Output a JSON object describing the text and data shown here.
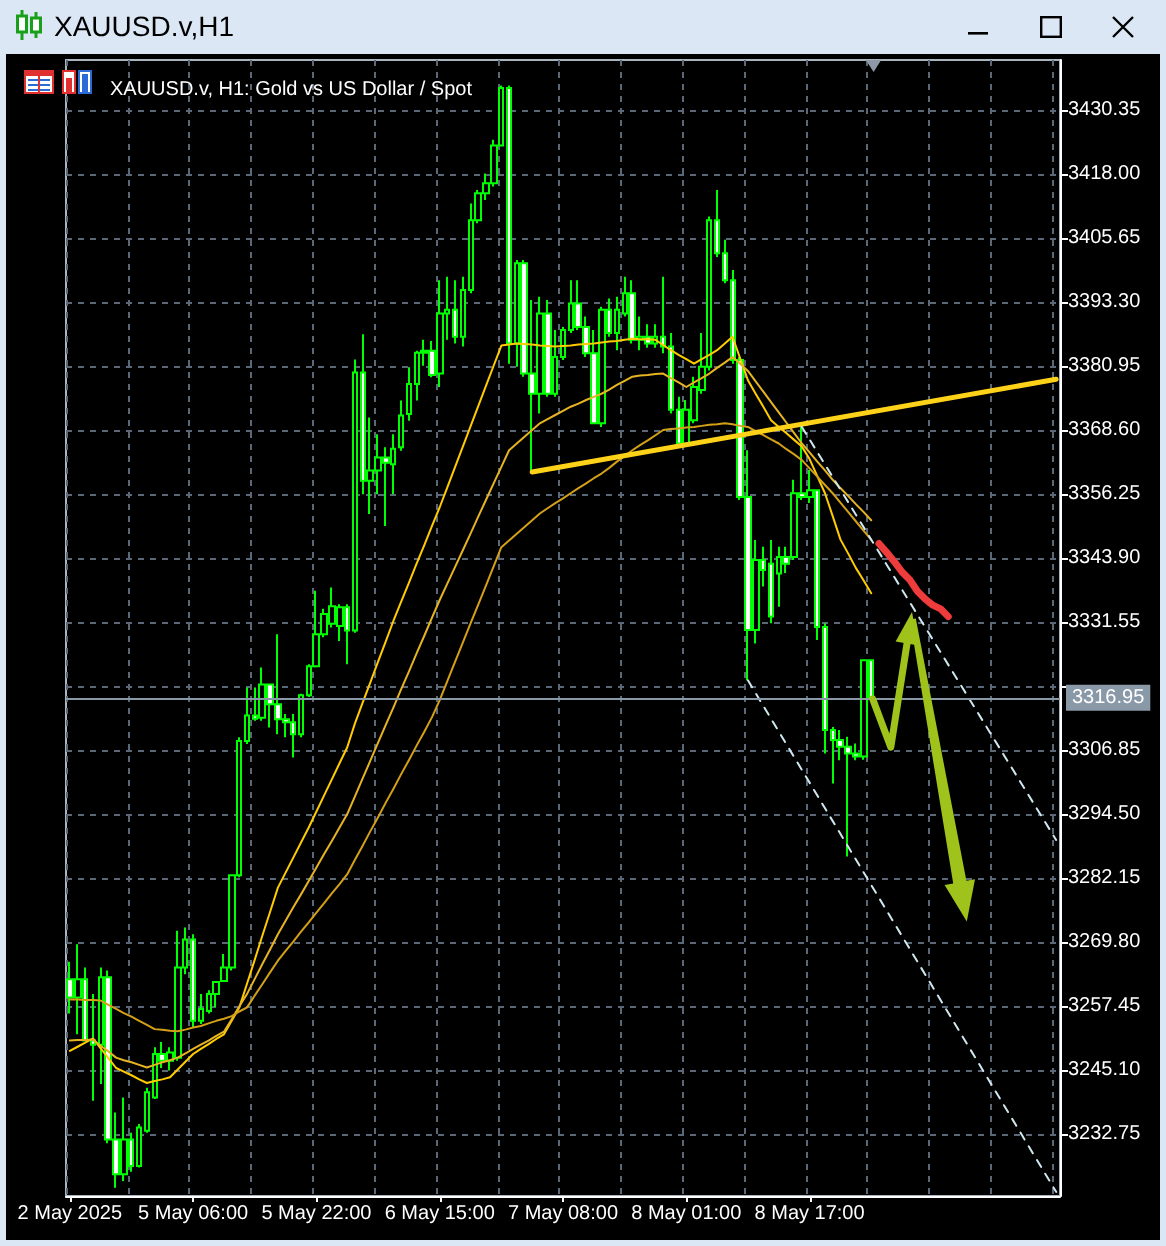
{
  "chart_data": {
    "type": "candlestick",
    "title": "XAUUSD.v,H1",
    "subtitle": "XAUUSD.v, H1: Gold vs US Dollar / Spot",
    "categories": [
      "2 May 2025",
      null,
      null,
      null,
      null,
      null,
      null,
      null,
      null,
      null,
      null,
      null,
      null,
      null,
      null,
      null,
      "5 May 06:00",
      null,
      null,
      null,
      null,
      null,
      null,
      null,
      null,
      null,
      null,
      null,
      null,
      null,
      null,
      null,
      "5 May 22:00",
      null,
      null,
      null,
      null,
      null,
      null,
      null,
      null,
      null,
      null,
      null,
      null,
      null,
      null,
      null,
      "6 May 15:00",
      null,
      null,
      null,
      null,
      null,
      null,
      null,
      null,
      null,
      null,
      null,
      null,
      null,
      null,
      null,
      "7 May 08:00",
      null,
      null,
      null,
      null,
      null,
      null,
      null,
      null,
      null,
      null,
      null,
      null,
      null,
      null,
      null,
      "8 May 01:00",
      null,
      null,
      null,
      null,
      null,
      null,
      null,
      null,
      null,
      null,
      null,
      null,
      null,
      null,
      null,
      "8 May 17:00",
      null,
      null,
      null,
      null,
      null,
      null,
      null,
      null,
      null,
      null,
      null,
      null,
      null,
      null,
      null,
      null,
      null,
      null,
      null,
      null,
      null,
      null,
      null,
      null,
      null,
      null,
      null,
      null,
      null,
      null,
      null,
      null
    ],
    "color": "#00ff00",
    "ohlc": [
      [
        3262.6,
        3266.0,
        3256.0,
        3259.1
      ],
      [
        3259.1,
        3269.4,
        3252.0,
        3262.6
      ],
      [
        3262.6,
        3264.9,
        3250.8,
        3250.8
      ],
      [
        3250.8,
        3259.8,
        3239.2,
        3250.0
      ],
      [
        3250.0,
        3264.9,
        3242.4,
        3263.0
      ],
      [
        3263.0,
        3264.3,
        3231.0,
        3231.7
      ],
      [
        3231.7,
        3236.9,
        3222.4,
        3225.0
      ],
      [
        3225.0,
        3239.8,
        3223.7,
        3231.7
      ],
      [
        3231.7,
        3233.0,
        3225.5,
        3226.6
      ],
      [
        3226.6,
        3234.7,
        3226.3,
        3234.0
      ],
      [
        3233.4,
        3241.7,
        3233.0,
        3240.8
      ],
      [
        3239.8,
        3249.5,
        3239.5,
        3248.2
      ],
      [
        3248.2,
        3250.5,
        3245.5,
        3246.9
      ],
      [
        3246.9,
        3249.5,
        3245.0,
        3248.5
      ],
      [
        3247.5,
        3272.0,
        3246.9,
        3264.9
      ],
      [
        3264.9,
        3272.6,
        3263.6,
        3270.3
      ],
      [
        3270.3,
        3271.3,
        3253.3,
        3254.6
      ],
      [
        3254.6,
        3259.8,
        3254.0,
        3256.9
      ],
      [
        3256.5,
        3260.5,
        3256.0,
        3259.8
      ],
      [
        3259.8,
        3262.3,
        3257.2,
        3262.1
      ],
      [
        3262.3,
        3267.5,
        3262.1,
        3264.9
      ],
      [
        3264.9,
        3282.9,
        3264.3,
        3282.7
      ],
      [
        3282.7,
        3309.3,
        3282.3,
        3308.6
      ],
      [
        3308.6,
        3318.9,
        3308.0,
        3313.5
      ],
      [
        3313.5,
        3318.9,
        3312.5,
        3312.9
      ],
      [
        3313.1,
        3322.8,
        3312.5,
        3319.5
      ],
      [
        3319.5,
        3319.6,
        3311.2,
        3315.7
      ],
      [
        3315.7,
        3329.2,
        3309.9,
        3312.8
      ],
      [
        3312.8,
        3313.8,
        3309.3,
        3312.2
      ],
      [
        3312.2,
        3313.8,
        3305.4,
        3309.9
      ],
      [
        3309.9,
        3317.7,
        3309.3,
        3317.4
      ],
      [
        3317.4,
        3323.4,
        3317.1,
        3323.0
      ],
      [
        3323.0,
        3337.6,
        3322.8,
        3329.2
      ],
      [
        3329.2,
        3334.1,
        3328.6,
        3333.1
      ],
      [
        3331.2,
        3338.2,
        3330.5,
        3334.6
      ],
      [
        3330.8,
        3335.0,
        3327.9,
        3334.4
      ],
      [
        3334.4,
        3335.0,
        3323.4,
        3329.9
      ],
      [
        3329.9,
        3382.2,
        3329.5,
        3379.7
      ],
      [
        3379.7,
        3387.1,
        3356.2,
        3358.8
      ],
      [
        3358.8,
        3371.0,
        3352.4,
        3360.8
      ],
      [
        3360.8,
        3367.8,
        3356.2,
        3363.3
      ],
      [
        3363.3,
        3365.3,
        3350.1,
        3362.3
      ],
      [
        3362.0,
        3367.8,
        3356.2,
        3365.0
      ],
      [
        3365.3,
        3374.3,
        3364.6,
        3371.4
      ],
      [
        3371.7,
        3380.7,
        3370.4,
        3377.5
      ],
      [
        3377.5,
        3383.9,
        3374.3,
        3383.5
      ],
      [
        3383.5,
        3386.0,
        3381.0,
        3383.9
      ],
      [
        3383.9,
        3385.8,
        3378.8,
        3379.2
      ],
      [
        3379.5,
        3397.5,
        3376.9,
        3391.1
      ],
      [
        3391.1,
        3398.2,
        3386.0,
        3391.8
      ],
      [
        3391.8,
        3397.5,
        3385.3,
        3386.6
      ],
      [
        3386.6,
        3398.2,
        3384.7,
        3395.6
      ],
      [
        3395.6,
        3412.3,
        3395.0,
        3409.1
      ],
      [
        3409.1,
        3414.9,
        3408.5,
        3414.3
      ],
      [
        3414.3,
        3418.1,
        3413.0,
        3416.2
      ],
      [
        3416.2,
        3424.6,
        3415.6,
        3423.5
      ],
      [
        3423.5,
        3435.1,
        3423.3,
        3434.6
      ],
      [
        3434.6,
        3435.1,
        3381.4,
        3385.3
      ],
      [
        3385.3,
        3401.4,
        3380.8,
        3400.8
      ],
      [
        3400.8,
        3401.4,
        3378.9,
        3379.5
      ],
      [
        3379.5,
        3393.7,
        3360.5,
        3375.6
      ],
      [
        3375.6,
        3394.3,
        3371.8,
        3391.1
      ],
      [
        3391.1,
        3393.7,
        3375.0,
        3375.6
      ],
      [
        3375.6,
        3387.9,
        3375.0,
        3382.7
      ],
      [
        3382.7,
        3388.5,
        3382.1,
        3387.9
      ],
      [
        3387.9,
        3397.5,
        3387.3,
        3393.0
      ],
      [
        3393.0,
        3397.5,
        3387.9,
        3388.5
      ],
      [
        3388.5,
        3390.5,
        3382.7,
        3383.4
      ],
      [
        3383.4,
        3387.9,
        3369.9,
        3369.9
      ],
      [
        3369.9,
        3392.4,
        3369.2,
        3391.8
      ],
      [
        3391.8,
        3394.0,
        3386.6,
        3387.3
      ],
      [
        3387.3,
        3394.3,
        3384.0,
        3391.8
      ],
      [
        3391.1,
        3398.2,
        3390.5,
        3395.0
      ],
      [
        3395.0,
        3397.5,
        3385.3,
        3386.0
      ],
      [
        3386.0,
        3390.5,
        3384.0,
        3386.6
      ],
      [
        3386.6,
        3389.0,
        3384.5,
        3385.3
      ],
      [
        3385.3,
        3389.0,
        3384.5,
        3386.6
      ],
      [
        3386.6,
        3398.2,
        3383.4,
        3384.7
      ],
      [
        3384.7,
        3387.3,
        3371.8,
        3372.5
      ],
      [
        3372.5,
        3375.0,
        3365.4,
        3366.0
      ],
      [
        3366.0,
        3374.4,
        3365.4,
        3372.5
      ],
      [
        3370.5,
        3378.9,
        3369.9,
        3376.9
      ],
      [
        3376.3,
        3387.3,
        3375.6,
        3380.8
      ],
      [
        3380.8,
        3409.8,
        3380.1,
        3409.1
      ],
      [
        3409.1,
        3414.9,
        3402.0,
        3402.7
      ],
      [
        3402.7,
        3405.3,
        3396.9,
        3397.5
      ],
      [
        3397.5,
        3399.5,
        3381.4,
        3382.1
      ],
      [
        3382.1,
        3382.7,
        3355.1,
        3355.7
      ],
      [
        3355.7,
        3364.7,
        3320.3,
        3330.0
      ],
      [
        3330.0,
        3347.4,
        3327.4,
        3343.5
      ],
      [
        3343.5,
        3346.1,
        3338.4,
        3341.6
      ],
      [
        3342.8,
        3347.4,
        3331.3,
        3332.6
      ],
      [
        3340.9,
        3346.1,
        3334.5,
        3344.1
      ],
      [
        3344.1,
        3346.1,
        3341.0,
        3342.8
      ],
      [
        3344.1,
        3359.0,
        3343.5,
        3356.4
      ],
      [
        3356.4,
        3369.2,
        3355.1,
        3355.7
      ],
      [
        3355.7,
        3360.9,
        3354.5,
        3357.0
      ],
      [
        3357.0,
        3357.0,
        3328.1,
        3330.6
      ],
      [
        3330.6,
        3331.3,
        3306.2,
        3310.7
      ],
      [
        3310.7,
        3311.3,
        3300.4,
        3308.8
      ],
      [
        3308.8,
        3310.7,
        3304.9,
        3307.5
      ],
      [
        3307.5,
        3309.4,
        3286.3,
        3306.2
      ],
      [
        3306.2,
        3308.1,
        3304.9,
        3305.6
      ],
      [
        3305.6,
        3324.2,
        3305.0,
        3324.2
      ],
      [
        3324.2,
        3324.2,
        3316.5,
        3316.95
      ],
      null,
      null,
      null,
      null,
      null,
      null,
      null,
      null,
      null,
      null,
      null,
      null,
      null,
      null,
      null,
      null,
      null,
      null,
      null,
      null,
      null,
      null,
      null,
      null
    ],
    "series": [
      {
        "type": "line",
        "color": "#ffcc00",
        "values": [
          3248.8,
          3249.6,
          3250.4,
          3251.2,
          3249.3,
          3247.4,
          3245.5,
          3244.8,
          3244.1,
          3243.3,
          3242.6,
          3243.0,
          3243.3,
          3243.7,
          3245.2,
          3246.7,
          3248.2,
          3249.2,
          3250.1,
          3251.1,
          3252.0,
          3254.6,
          3257.2,
          3261.8,
          3266.4,
          3271.1,
          3275.7,
          3280.3,
          3283.2,
          3286.1,
          3289.0,
          3291.9,
          3295.0,
          3298.1,
          3301.2,
          3304.3,
          3307.4,
          3312.0,
          3316.0,
          3319.9,
          3323.9,
          3327.8,
          3331.8,
          3335.5,
          3339.1,
          3342.8,
          3346.4,
          3350.1,
          3353.7,
          3357.6,
          3361.5,
          3365.4,
          3369.3,
          3373.2,
          3377.1,
          3381.0,
          3384.9,
          3385.1,
          3385.3,
          3385.2,
          3385.1,
          3384.9,
          3384.8,
          3384.7,
          3384.8,
          3384.9,
          3385.1,
          3385.2,
          3385.3,
          3385.5,
          3385.7,
          3385.8,
          3386.0,
          3386.2,
          3386.1,
          3386.1,
          3386.0,
          3385.0,
          3384.0,
          3383.1,
          3382.3,
          3381.4,
          3382.3,
          3383.1,
          3384.0,
          3385.3,
          3386.6,
          3382.4,
          3378.2,
          3375.6,
          3373.1,
          3370.5,
          3369.2,
          3368.0,
          3366.7,
          3365.4,
          3363.0,
          3359.7,
          3356.4,
          3352.0,
          3347.5,
          3344.8,
          3342.0,
          3339.6,
          3337.1,
          null,
          null,
          null,
          null,
          null,
          null,
          null,
          null,
          null,
          null,
          null,
          null,
          null,
          null,
          null,
          null,
          null,
          null,
          null,
          null,
          null,
          null,
          null,
          null
        ]
      },
      {
        "type": "line",
        "color": "#e6b422",
        "values": [
          3250.8,
          3250.9,
          3250.9,
          3251.0,
          3249.8,
          3248.7,
          3247.5,
          3247.0,
          3246.6,
          3246.1,
          3245.6,
          3246.1,
          3246.6,
          3247.0,
          3247.5,
          3248.3,
          3249.2,
          3250.0,
          3250.8,
          3251.7,
          3252.5,
          3254.9,
          3257.4,
          3259.8,
          3262.7,
          3265.6,
          3268.4,
          3271.3,
          3273.9,
          3276.5,
          3279.0,
          3281.6,
          3284.2,
          3286.8,
          3289.3,
          3291.9,
          3294.5,
          3297.9,
          3301.4,
          3304.8,
          3308.3,
          3311.7,
          3315.1,
          3318.6,
          3322.0,
          3325.5,
          3328.9,
          3332.4,
          3335.8,
          3339.0,
          3342.2,
          3345.4,
          3348.6,
          3351.9,
          3355.1,
          3358.3,
          3361.5,
          3364.7,
          3366.0,
          3367.3,
          3368.6,
          3369.9,
          3370.7,
          3371.5,
          3372.3,
          3373.1,
          3373.7,
          3374.4,
          3375.0,
          3375.6,
          3376.4,
          3377.3,
          3378.1,
          3378.9,
          3379.1,
          3379.2,
          3379.4,
          3379.5,
          3378.6,
          3377.8,
          3376.9,
          3377.8,
          3378.6,
          3379.5,
          3380.6,
          3381.6,
          3382.7,
          3381.4,
          3380.0,
          3378.0,
          3376.0,
          3374.0,
          3372.0,
          3370.0,
          3368.0,
          3366.0,
          3364.3,
          3362.5,
          3360.8,
          3359.0,
          3357.4,
          3355.9,
          3354.3,
          3352.8,
          3351.2,
          null,
          null,
          null,
          null,
          null,
          null,
          null,
          null,
          null,
          null,
          null,
          null,
          null,
          null,
          null,
          null,
          null,
          null,
          null,
          null,
          null,
          null,
          null,
          null
        ]
      },
      {
        "type": "line",
        "color": "#d4a017",
        "values": [
          3258.7,
          3258.7,
          3258.6,
          3258.6,
          3258.5,
          3257.7,
          3256.9,
          3256.1,
          3255.4,
          3254.6,
          3253.8,
          3253.0,
          3252.9,
          3252.7,
          3252.6,
          3252.9,
          3253.3,
          3253.6,
          3254.1,
          3254.6,
          3255.0,
          3255.5,
          3256.4,
          3257.2,
          3259.5,
          3261.7,
          3264.0,
          3266.2,
          3268.1,
          3269.9,
          3271.8,
          3273.6,
          3275.5,
          3277.3,
          3279.2,
          3281.0,
          3282.9,
          3285.7,
          3288.4,
          3291.2,
          3293.9,
          3296.7,
          3299.4,
          3302.2,
          3304.9,
          3307.7,
          3310.4,
          3313.2,
          3316.5,
          3320.2,
          3323.9,
          3327.6,
          3331.3,
          3334.9,
          3338.6,
          3342.3,
          3346.0,
          3347.3,
          3348.6,
          3349.9,
          3351.2,
          3352.5,
          3353.5,
          3354.5,
          3355.4,
          3356.4,
          3357.4,
          3358.3,
          3359.3,
          3360.2,
          3361.3,
          3362.5,
          3363.6,
          3364.7,
          3365.7,
          3366.6,
          3367.6,
          3368.6,
          3368.8,
          3368.9,
          3369.1,
          3369.2,
          3369.4,
          3369.6,
          3369.7,
          3369.9,
          3369.7,
          3369.4,
          3369.2,
          3368.4,
          3367.6,
          3366.8,
          3366.0,
          3364.9,
          3363.9,
          3362.8,
          3361.2,
          3359.6,
          3358.0,
          3356.4,
          3354.6,
          3352.8,
          3351.0,
          3349.2,
          3347.4,
          null,
          null,
          null,
          null,
          null,
          null,
          null,
          null,
          null,
          null,
          null,
          null,
          null,
          null,
          null,
          null,
          null,
          null,
          null,
          null,
          null,
          null,
          null,
          null
        ]
      },
      {
        "type": "line",
        "color": "#ffd21a",
        "values": [
          null,
          null,
          null,
          null,
          null,
          null,
          null,
          null,
          null,
          null,
          null,
          null,
          null,
          null,
          null,
          null,
          null,
          null,
          null,
          null,
          null,
          null,
          null,
          null,
          null,
          null,
          null,
          null,
          null,
          null,
          null,
          null,
          null,
          null,
          null,
          null,
          null,
          null,
          null,
          null,
          null,
          null,
          null,
          null,
          null,
          null,
          null,
          null,
          null,
          null,
          null,
          null,
          null,
          null,
          null,
          null,
          null,
          null,
          null,
          null,
          3360.5,
          null,
          null,
          null,
          null,
          null,
          null,
          null,
          null,
          null,
          null,
          null,
          null,
          null,
          null,
          null,
          null,
          null,
          null,
          null,
          null,
          null,
          null,
          null,
          null,
          null,
          null,
          null,
          null,
          null,
          null,
          null,
          null,
          null,
          null,
          null,
          null,
          null,
          null,
          null,
          null,
          null,
          null,
          null,
          null,
          null,
          null,
          null,
          null,
          null,
          null,
          null,
          null,
          null,
          null,
          null,
          null,
          null,
          null,
          null,
          null,
          null,
          null,
          null,
          null,
          null,
          null,
          null,
          3378.4
        ]
      },
      {
        "type": "line",
        "color": "#cfe8f0",
        "line_style": "dashed",
        "values": [
          null,
          null,
          null,
          null,
          null,
          null,
          null,
          null,
          null,
          null,
          null,
          null,
          null,
          null,
          null,
          null,
          null,
          null,
          null,
          null,
          null,
          null,
          null,
          null,
          null,
          null,
          null,
          null,
          null,
          null,
          null,
          null,
          null,
          null,
          null,
          null,
          null,
          null,
          null,
          null,
          null,
          null,
          null,
          null,
          null,
          null,
          null,
          null,
          null,
          null,
          null,
          null,
          null,
          null,
          null,
          null,
          null,
          null,
          null,
          null,
          null,
          null,
          null,
          null,
          null,
          null,
          null,
          null,
          null,
          null,
          null,
          null,
          null,
          null,
          null,
          null,
          null,
          null,
          null,
          null,
          null,
          null,
          null,
          null,
          null,
          null,
          null,
          null,
          null,
          null,
          null,
          null,
          null,
          null,
          null,
          3369.2,
          null,
          null,
          null,
          null,
          null,
          null,
          null,
          null,
          null,
          null,
          null,
          null,
          null,
          null,
          null,
          null,
          null,
          null,
          null,
          null,
          null,
          null,
          null,
          null,
          null,
          null,
          null,
          null,
          null,
          null,
          null,
          null,
          3289.5
        ]
      },
      {
        "type": "line",
        "color": "#cfe8f0",
        "line_style": "dashed",
        "values": [
          null,
          null,
          null,
          null,
          null,
          null,
          null,
          null,
          null,
          null,
          null,
          null,
          null,
          null,
          null,
          null,
          null,
          null,
          null,
          null,
          null,
          null,
          null,
          null,
          null,
          null,
          null,
          null,
          null,
          null,
          null,
          null,
          null,
          null,
          null,
          null,
          null,
          null,
          null,
          null,
          null,
          null,
          null,
          null,
          null,
          null,
          null,
          null,
          null,
          null,
          null,
          null,
          null,
          null,
          null,
          null,
          null,
          null,
          null,
          null,
          null,
          null,
          null,
          null,
          null,
          null,
          null,
          null,
          null,
          null,
          null,
          null,
          null,
          null,
          null,
          null,
          null,
          null,
          null,
          null,
          null,
          null,
          null,
          null,
          null,
          null,
          null,
          null,
          3320.3,
          null,
          null,
          null,
          null,
          null,
          null,
          null,
          null,
          null,
          null,
          null,
          null,
          null,
          null,
          null,
          null,
          null,
          null,
          null,
          null,
          null,
          null,
          null,
          null,
          null,
          null,
          null,
          null,
          null,
          null,
          null,
          null,
          null,
          null,
          null,
          null,
          null,
          null,
          null,
          3221.6
        ]
      },
      {
        "type": "line",
        "color": "#ee3b3b",
        "values": [
          null,
          null,
          null,
          null,
          null,
          null,
          null,
          null,
          null,
          null,
          null,
          null,
          null,
          null,
          null,
          null,
          null,
          null,
          null,
          null,
          null,
          null,
          null,
          null,
          null,
          null,
          null,
          null,
          null,
          null,
          null,
          null,
          null,
          null,
          null,
          null,
          null,
          null,
          null,
          null,
          null,
          null,
          null,
          null,
          null,
          null,
          null,
          null,
          null,
          null,
          null,
          null,
          null,
          null,
          null,
          null,
          null,
          null,
          null,
          null,
          null,
          null,
          null,
          null,
          null,
          null,
          null,
          null,
          null,
          null,
          null,
          null,
          null,
          null,
          null,
          null,
          null,
          null,
          null,
          null,
          null,
          null,
          null,
          null,
          null,
          null,
          null,
          null,
          null,
          null,
          null,
          null,
          null,
          null,
          null,
          null,
          null,
          null,
          null,
          null,
          null,
          null,
          null,
          null,
          null,
          3346.7,
          3345.0,
          3343.2,
          3341.2,
          3339.7,
          3337.5,
          3336.0,
          3334.8,
          3334.1,
          3332.6,
          null,
          null,
          null,
          null,
          null,
          null,
          null,
          null,
          null,
          null,
          null,
          null,
          null,
          null
        ]
      }
    ],
    "ylim": [
      3220.8,
      3440.0
    ],
    "yticks": [
      3232.75,
      {
        "value": 3245.1,
        "label": "3245.10"
      },
      3257.45,
      {
        "value": 3269.8,
        "label": "3269.80"
      },
      3282.15,
      {
        "value": 3294.5,
        "label": "3294.50"
      },
      3306.85,
      {
        "value": 3319.2,
        "label": null
      },
      3331.55,
      {
        "value": 3343.9,
        "label": "3343.90"
      },
      3356.25,
      {
        "value": 3368.6,
        "label": "3368.60"
      },
      3380.95,
      {
        "value": 3393.3,
        "label": "3393.30"
      },
      3405.65,
      {
        "value": 3418,
        "label": "3418.00"
      },
      3430.35
    ],
    "grid": true,
    "ref_lines": [
      {
        "axis": "y",
        "value": 3316.95,
        "label": "3316.95",
        "color": "#8a99a8"
      }
    ]
  }
}
